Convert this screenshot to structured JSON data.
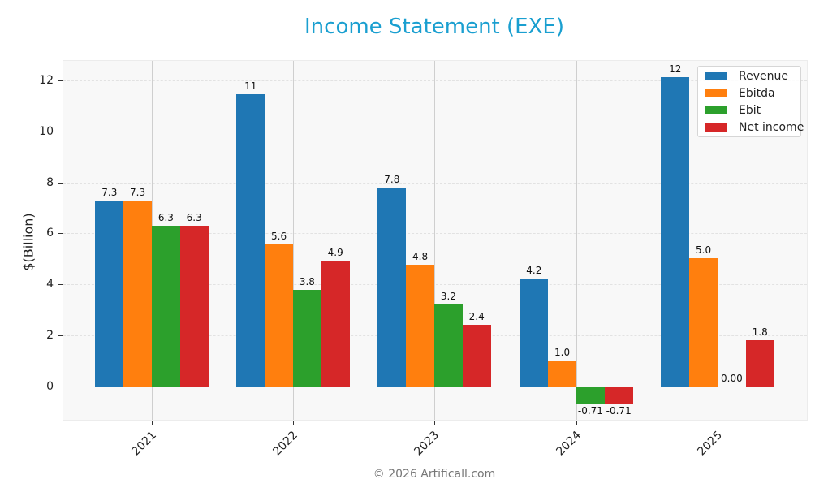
{
  "title": "Income Statement (EXE)",
  "footer": "© 2026 Artificall.com",
  "chart_data": {
    "type": "bar",
    "title": "Income Statement (EXE)",
    "xlabel": "",
    "ylabel": "$(Billion)",
    "ylim": [
      -1.35,
      12.8
    ],
    "yticks": [
      0,
      2,
      4,
      6,
      8,
      10,
      12
    ],
    "grid": true,
    "legend_position": "upper right",
    "categories": [
      "2021",
      "2022",
      "2023",
      "2024",
      "2025"
    ],
    "series": [
      {
        "name": "Revenue",
        "color": "#1f77b4",
        "values": [
          7.3,
          11.46,
          7.8,
          4.22,
          12.13
        ],
        "labels": [
          "7.3",
          "11",
          "7.8",
          "4.2",
          "12"
        ]
      },
      {
        "name": "Ebitda",
        "color": "#ff7f0e",
        "values": [
          7.3,
          5.56,
          4.77,
          1.02,
          5.02
        ],
        "labels": [
          "7.3",
          "5.6",
          "4.8",
          "1.0",
          "5.0"
        ]
      },
      {
        "name": "Ebit",
        "color": "#2ca02c",
        "values": [
          6.3,
          3.8,
          3.22,
          -0.71,
          0.0
        ],
        "labels": [
          "6.3",
          "3.8",
          "3.2",
          "-0.71",
          "0.00"
        ]
      },
      {
        "name": "Net income",
        "color": "#d62728",
        "values": [
          6.3,
          4.92,
          2.42,
          -0.71,
          1.8
        ],
        "labels": [
          "6.3",
          "4.9",
          "2.4",
          "-0.71",
          "1.8"
        ]
      }
    ]
  }
}
